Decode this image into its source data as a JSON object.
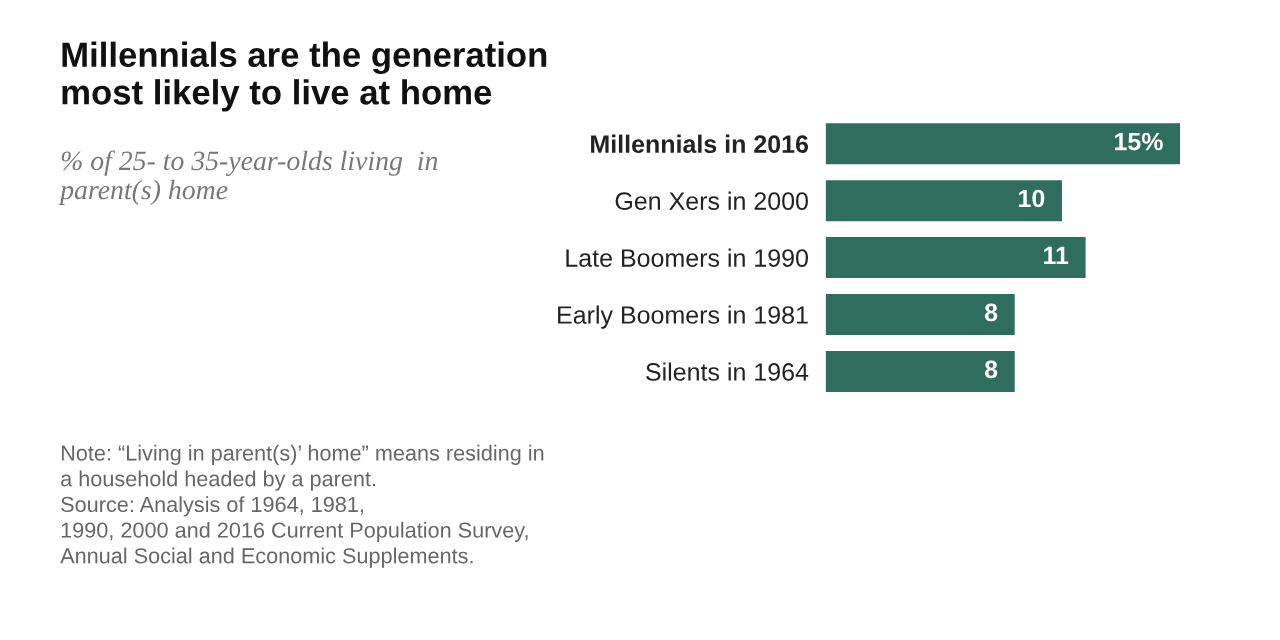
{
  "chart_data": {
    "type": "bar",
    "orientation": "horizontal",
    "relative": false,
    "title": "Millennials are the generation\nmost likely to live at home",
    "subtitle": "% of 25- to 35-year-olds living  in\nparent(s) home",
    "categories": [
      "Millennials in 2016",
      "Gen Xers in 2000",
      "Late Boomers in 1990",
      "Early Boomers in 1981",
      "Silents in 1964"
    ],
    "values": [
      15,
      10,
      11,
      8,
      8
    ],
    "value_labels": [
      "15%",
      "10",
      "11",
      "8",
      "8"
    ],
    "color": "#2f6e5e",
    "xlim": [
      0,
      15
    ],
    "tick_labels": "y",
    "annotations": [
      "Note: “Living in parent(s)’ home” means residing in\na household headed by a parent.\nSource: Analysis of 1964, 1981,\n1990, 2000 and 2016 Current Population Survey,\nAnnual Social and Economic Supplements."
    ]
  }
}
